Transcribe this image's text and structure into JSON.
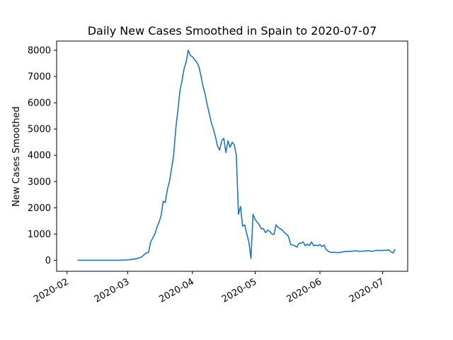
{
  "chart_data": {
    "type": "line",
    "title": "Daily New Cases Smoothed in Spain to 2020-07-07",
    "xlabel": "",
    "ylabel": "New Cases Smoothed",
    "x_ticks": [
      "2020-02",
      "2020-03",
      "2020-04",
      "2020-05",
      "2020-06",
      "2020-07"
    ],
    "y_ticks": [
      0,
      1000,
      2000,
      3000,
      4000,
      5000,
      6000,
      7000,
      8000
    ],
    "xlim": [
      "2020-01-27",
      "2020-07-13"
    ],
    "ylim": [
      -420,
      8350
    ],
    "grid": false,
    "color": "#1f77b4",
    "series": [
      {
        "points": [
          [
            "2020-02-06",
            0
          ],
          [
            "2020-02-10",
            0
          ],
          [
            "2020-02-15",
            0
          ],
          [
            "2020-02-20",
            0
          ],
          [
            "2020-02-25",
            0
          ],
          [
            "2020-02-29",
            10
          ],
          [
            "2020-03-03",
            30
          ],
          [
            "2020-03-05",
            60
          ],
          [
            "2020-03-07",
            100
          ],
          [
            "2020-03-08",
            150
          ],
          [
            "2020-03-09",
            220
          ],
          [
            "2020-03-10",
            280
          ],
          [
            "2020-03-11",
            300
          ],
          [
            "2020-03-12",
            700
          ],
          [
            "2020-03-13",
            850
          ],
          [
            "2020-03-14",
            1000
          ],
          [
            "2020-03-15",
            1250
          ],
          [
            "2020-03-16",
            1450
          ],
          [
            "2020-03-17",
            1700
          ],
          [
            "2020-03-18",
            2250
          ],
          [
            "2020-03-19",
            2200
          ],
          [
            "2020-03-20",
            2700
          ],
          [
            "2020-03-21",
            3000
          ],
          [
            "2020-03-22",
            3500
          ],
          [
            "2020-03-23",
            4000
          ],
          [
            "2020-03-24",
            5000
          ],
          [
            "2020-03-25",
            5700
          ],
          [
            "2020-03-26",
            6450
          ],
          [
            "2020-03-27",
            6850
          ],
          [
            "2020-03-28",
            7300
          ],
          [
            "2020-03-29",
            7550
          ],
          [
            "2020-03-30",
            8000
          ],
          [
            "2020-03-31",
            7800
          ],
          [
            "2020-04-01",
            7750
          ],
          [
            "2020-04-02",
            7650
          ],
          [
            "2020-04-03",
            7550
          ],
          [
            "2020-04-04",
            7400
          ],
          [
            "2020-04-05",
            7050
          ],
          [
            "2020-04-06",
            6650
          ],
          [
            "2020-04-07",
            6350
          ],
          [
            "2020-04-08",
            5950
          ],
          [
            "2020-04-09",
            5600
          ],
          [
            "2020-04-10",
            5250
          ],
          [
            "2020-04-11",
            5000
          ],
          [
            "2020-04-12",
            4700
          ],
          [
            "2020-04-13",
            4350
          ],
          [
            "2020-04-14",
            4200
          ],
          [
            "2020-04-15",
            4550
          ],
          [
            "2020-04-16",
            4650
          ],
          [
            "2020-04-17",
            4100
          ],
          [
            "2020-04-18",
            4550
          ],
          [
            "2020-04-19",
            4300
          ],
          [
            "2020-04-20",
            4500
          ],
          [
            "2020-04-21",
            4400
          ],
          [
            "2020-04-22",
            4000
          ],
          [
            "2020-04-23",
            1750
          ],
          [
            "2020-04-24",
            2050
          ],
          [
            "2020-04-25",
            1300
          ],
          [
            "2020-04-26",
            1350
          ],
          [
            "2020-04-27",
            1000
          ],
          [
            "2020-04-28",
            700
          ],
          [
            "2020-04-29",
            70
          ],
          [
            "2020-04-30",
            1750
          ],
          [
            "2020-05-01",
            1550
          ],
          [
            "2020-05-02",
            1450
          ],
          [
            "2020-05-03",
            1350
          ],
          [
            "2020-05-04",
            1200
          ],
          [
            "2020-05-05",
            1200
          ],
          [
            "2020-05-06",
            1050
          ],
          [
            "2020-05-07",
            1150
          ],
          [
            "2020-05-08",
            1100
          ],
          [
            "2020-05-09",
            1000
          ],
          [
            "2020-05-10",
            980
          ],
          [
            "2020-05-11",
            1350
          ],
          [
            "2020-05-12",
            1250
          ],
          [
            "2020-05-13",
            1200
          ],
          [
            "2020-05-14",
            1150
          ],
          [
            "2020-05-15",
            1050
          ],
          [
            "2020-05-16",
            1000
          ],
          [
            "2020-05-17",
            900
          ],
          [
            "2020-05-18",
            600
          ],
          [
            "2020-05-19",
            580
          ],
          [
            "2020-05-20",
            550
          ],
          [
            "2020-05-21",
            500
          ],
          [
            "2020-05-22",
            650
          ],
          [
            "2020-05-23",
            650
          ],
          [
            "2020-05-24",
            700
          ],
          [
            "2020-05-25",
            550
          ],
          [
            "2020-05-26",
            620
          ],
          [
            "2020-05-27",
            560
          ],
          [
            "2020-05-28",
            700
          ],
          [
            "2020-05-29",
            550
          ],
          [
            "2020-05-30",
            580
          ],
          [
            "2020-05-31",
            550
          ],
          [
            "2020-06-01",
            600
          ],
          [
            "2020-06-02",
            520
          ],
          [
            "2020-06-03",
            580
          ],
          [
            "2020-06-04",
            400
          ],
          [
            "2020-06-05",
            350
          ],
          [
            "2020-06-06",
            300
          ],
          [
            "2020-06-08",
            300
          ],
          [
            "2020-06-10",
            290
          ],
          [
            "2020-06-12",
            320
          ],
          [
            "2020-06-14",
            340
          ],
          [
            "2020-06-16",
            340
          ],
          [
            "2020-06-18",
            360
          ],
          [
            "2020-06-20",
            340
          ],
          [
            "2020-06-22",
            350
          ],
          [
            "2020-06-24",
            360
          ],
          [
            "2020-06-26",
            340
          ],
          [
            "2020-06-28",
            380
          ],
          [
            "2020-06-30",
            370
          ],
          [
            "2020-07-02",
            380
          ],
          [
            "2020-07-04",
            390
          ],
          [
            "2020-07-05",
            320
          ],
          [
            "2020-07-06",
            280
          ],
          [
            "2020-07-07",
            420
          ]
        ]
      }
    ]
  }
}
